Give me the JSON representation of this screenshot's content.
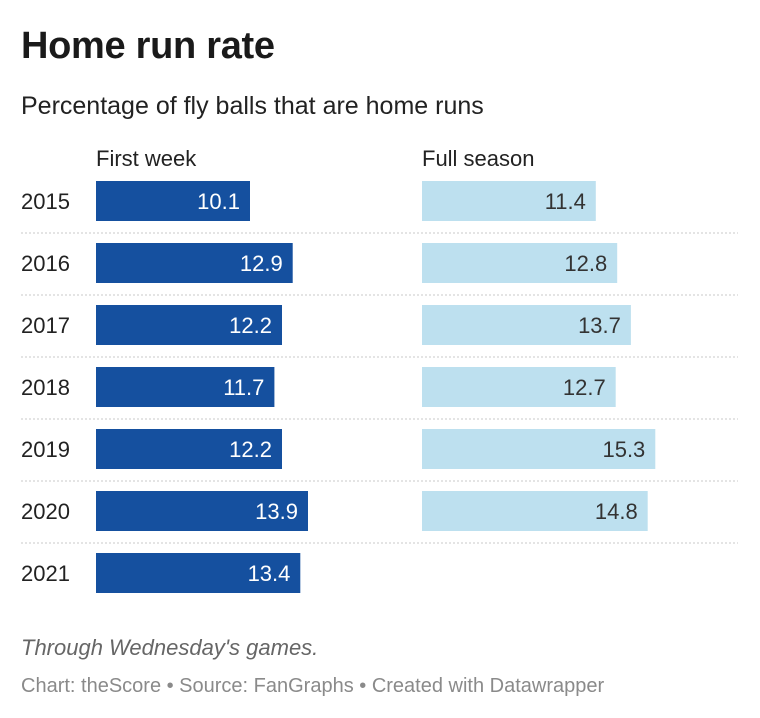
{
  "header": {
    "title": "Home run rate",
    "subtitle": "Percentage of fly balls that are home runs"
  },
  "chart_data": {
    "type": "bar",
    "orientation": "horizontal",
    "categories": [
      "2015",
      "2016",
      "2017",
      "2018",
      "2019",
      "2020",
      "2021"
    ],
    "series": [
      {
        "name": "First week",
        "values": [
          10.1,
          12.9,
          12.2,
          11.7,
          12.2,
          13.9,
          13.4
        ],
        "color": "#15509f",
        "label_color": "#ffffff"
      },
      {
        "name": "Full season",
        "values": [
          11.4,
          12.8,
          13.7,
          12.7,
          15.3,
          14.8,
          null
        ],
        "color": "#bde0ef",
        "label_color": "#333333"
      }
    ],
    "data_labels": true,
    "grid": false,
    "legend": "column headers"
  },
  "footer": {
    "note": "Through Wednesday's games.",
    "credits": "Chart: theScore • Source: FanGraphs • Created with Datawrapper"
  },
  "colors": {
    "first_week": "#15509f",
    "full_season": "#bde0ef",
    "separator": "#c8c8c8"
  }
}
